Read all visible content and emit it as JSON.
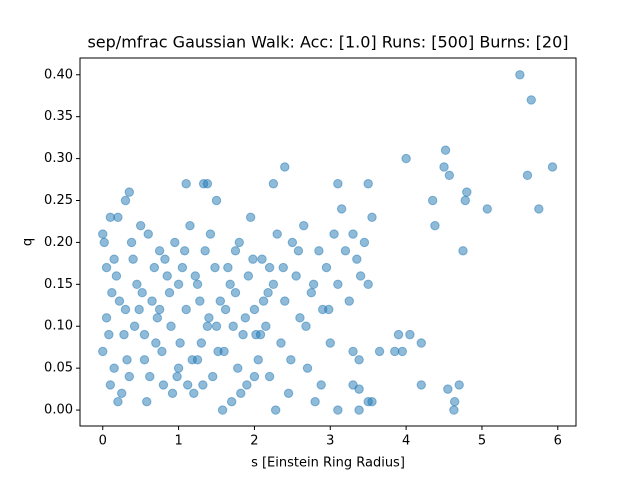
{
  "chart_data": {
    "type": "scatter",
    "title": "sep/mfrac Gaussian Walk: Acc: [1.0] Runs: [500] Burns: [20]",
    "x_label": "s [Einstein Ring Radius]",
    "y_label": "q",
    "color": "#1f77b4",
    "xlim": [
      -0.3,
      6.24
    ],
    "ylim": [
      -0.019,
      0.42
    ],
    "xticks": [
      0,
      1,
      2,
      3,
      4,
      5,
      6
    ],
    "yticks": [
      {
        "value": 0,
        "label": "0.00"
      },
      {
        "value": 0.05,
        "label": "0.05"
      },
      {
        "value": 0.1,
        "label": "0.10"
      },
      {
        "value": 0.15,
        "label": "0.15"
      },
      {
        "value": 0.2,
        "label": "0.20"
      },
      {
        "value": 0.25,
        "label": "0.25"
      },
      {
        "value": 0.3,
        "label": "0.30"
      },
      {
        "value": 0.35,
        "label": "0.35"
      },
      {
        "value": 0.4,
        "label": "0.40"
      }
    ],
    "x": [
      5.5,
      5.65,
      5.93,
      5.6,
      5.75,
      5.07,
      4.78,
      4.8,
      4.75,
      4.52,
      4.5,
      4.57,
      4.35,
      4.38,
      4.0,
      2.4,
      1.1,
      1.33,
      1.38,
      2.25,
      3.1,
      3.5,
      0.35,
      0.3,
      0.2,
      4.7,
      4.64,
      4.63,
      4.55,
      4.2,
      3.9,
      4.05,
      4.2,
      3.95,
      3.85,
      3.65,
      3.3,
      3.38,
      3.3,
      3.38,
      3.5,
      3.55,
      3.1,
      3.38,
      0.0,
      0.02,
      0.05,
      0.1,
      0.12,
      0.08,
      0.0,
      0.05,
      0.15,
      0.2,
      0.25,
      0.3,
      0.4,
      0.45,
      0.5,
      0.55,
      0.6,
      0.65,
      0.7,
      0.75,
      0.8,
      0.85,
      0.9,
      0.95,
      1.0,
      1.05,
      1.1,
      1.15,
      1.2,
      1.25,
      1.3,
      1.35,
      1.4,
      1.45,
      1.5,
      1.55,
      1.6,
      1.65,
      1.7,
      1.75,
      1.8,
      1.85,
      1.9,
      1.95,
      2.0,
      2.05,
      2.1,
      2.15,
      2.2,
      2.25,
      2.3,
      2.35,
      2.4,
      2.45,
      2.5,
      2.55,
      2.6,
      2.65,
      2.7,
      2.75,
      2.8,
      2.85,
      2.9,
      2.95,
      3.0,
      3.05,
      3.1,
      3.15,
      3.2,
      3.25,
      3.3,
      3.35,
      3.4,
      3.45,
      3.5,
      3.55,
      0.1,
      0.18,
      0.28,
      0.38,
      0.48,
      0.58,
      0.68,
      0.78,
      0.88,
      0.98,
      1.08,
      1.18,
      1.28,
      1.38,
      1.48,
      1.58,
      1.68,
      1.78,
      1.88,
      1.98,
      2.08,
      2.18,
      2.28,
      2.38,
      2.48,
      2.58,
      2.68,
      2.78,
      2.88,
      2.98,
      0.22,
      0.32,
      0.42,
      0.52,
      0.62,
      0.72,
      0.82,
      0.92,
      1.02,
      1.12,
      1.22,
      1.32,
      1.42,
      1.52,
      1.62,
      1.72,
      1.82,
      1.92,
      2.02,
      2.12,
      0.15,
      0.35,
      0.55,
      0.75,
      1.0,
      1.25,
      1.5,
      1.75,
      2.0,
      2.2
    ],
    "y": [
      0.4,
      0.37,
      0.29,
      0.28,
      0.24,
      0.24,
      0.25,
      0.26,
      0.19,
      0.31,
      0.29,
      0.28,
      0.25,
      0.22,
      0.3,
      0.29,
      0.27,
      0.27,
      0.27,
      0.27,
      0.27,
      0.27,
      0.26,
      0.25,
      0.23,
      0.03,
      0.01,
      0.0,
      0.025,
      0.03,
      0.09,
      0.09,
      0.08,
      0.07,
      0.07,
      0.07,
      0.07,
      0.06,
      0.03,
      0.025,
      0.01,
      0.01,
      0.0,
      0.0,
      0.21,
      0.2,
      0.17,
      0.23,
      0.14,
      0.09,
      0.07,
      0.11,
      0.05,
      0.01,
      0.02,
      0.12,
      0.18,
      0.15,
      0.22,
      0.06,
      0.21,
      0.13,
      0.08,
      0.19,
      0.03,
      0.16,
      0.1,
      0.2,
      0.05,
      0.17,
      0.12,
      0.22,
      0.02,
      0.15,
      0.08,
      0.19,
      0.11,
      0.04,
      0.25,
      0.13,
      0.07,
      0.17,
      0.01,
      0.14,
      0.2,
      0.09,
      0.03,
      0.23,
      0.12,
      0.06,
      0.18,
      0.1,
      0.04,
      0.15,
      0.21,
      0.08,
      0.13,
      0.02,
      0.2,
      0.16,
      0.11,
      0.22,
      0.05,
      0.14,
      0.01,
      0.19,
      0.12,
      0.17,
      0.08,
      0.21,
      0.15,
      0.24,
      0.19,
      0.13,
      0.21,
      0.18,
      0.16,
      0.2,
      0.15,
      0.23,
      0.03,
      0.16,
      0.09,
      0.2,
      0.12,
      0.01,
      0.17,
      0.07,
      0.14,
      0.04,
      0.19,
      0.06,
      0.13,
      0.1,
      0.17,
      0.0,
      0.15,
      0.05,
      0.11,
      0.18,
      0.09,
      0.14,
      0.0,
      0.17,
      0.06,
      0.19,
      0.1,
      0.15,
      0.03,
      0.12,
      0.13,
      0.06,
      0.1,
      0.14,
      0.04,
      0.11,
      0.18,
      0.02,
      0.08,
      0.03,
      0.16,
      0.03,
      0.21,
      0.07,
      0.12,
      0.1,
      0.02,
      0.16,
      0.09,
      0.13,
      0.18,
      0.04,
      0.09,
      0.12,
      0.15,
      0.06,
      0.1,
      0.19,
      0.04,
      0.17
    ]
  }
}
